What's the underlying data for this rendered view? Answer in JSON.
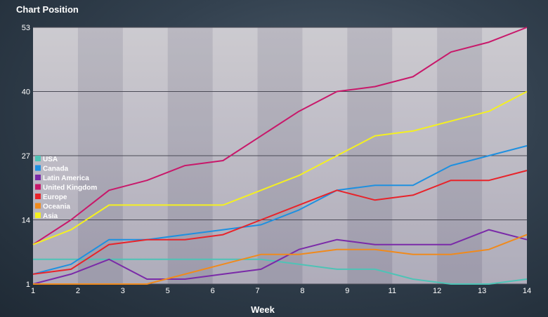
{
  "chart_data": {
    "type": "line",
    "title": "Chart Position",
    "xlabel": "Week",
    "ylabel": "",
    "x": [
      1,
      2,
      3,
      4,
      5,
      6,
      7,
      8,
      9,
      10,
      11,
      12,
      13,
      14
    ],
    "x_ticks": [
      1,
      2,
      3,
      5,
      6,
      7,
      8,
      9,
      11,
      12,
      13,
      14
    ],
    "y_ticks": [
      1,
      14,
      27,
      40,
      53
    ],
    "ylim": [
      1,
      53
    ],
    "grid": true,
    "legend_position": "left",
    "series": [
      {
        "name": "USA",
        "color": "#4ec3b6",
        "values": [
          6,
          6,
          6,
          6,
          6,
          6,
          6,
          5,
          4,
          4,
          2,
          1,
          1,
          2
        ]
      },
      {
        "name": "Canada",
        "color": "#1e90e0",
        "values": [
          3,
          5,
          10,
          10,
          11,
          12,
          13,
          16,
          20,
          21,
          21,
          25,
          27,
          29
        ]
      },
      {
        "name": "Latin America",
        "color": "#7a2aa8",
        "values": [
          1,
          3,
          6,
          2,
          2,
          3,
          4,
          8,
          10,
          9,
          9,
          9,
          12,
          10
        ]
      },
      {
        "name": "United Kingdom",
        "color": "#c8186a",
        "values": [
          9,
          14,
          20,
          22,
          25,
          26,
          31,
          36,
          40,
          41,
          43,
          48,
          50,
          53
        ]
      },
      {
        "name": "Europe",
        "color": "#e8232a",
        "values": [
          3,
          4,
          9,
          10,
          10,
          11,
          14,
          17,
          20,
          18,
          19,
          22,
          22,
          24
        ]
      },
      {
        "name": "Oceania",
        "color": "#f08a1c",
        "values": [
          1,
          1,
          1,
          1,
          3,
          5,
          7,
          7,
          8,
          8,
          7,
          7,
          8,
          11
        ]
      },
      {
        "name": "Asia",
        "color": "#f4f020",
        "values": [
          9,
          12,
          17,
          17,
          17,
          17,
          20,
          23,
          27,
          31,
          32,
          34,
          36,
          40
        ]
      }
    ]
  }
}
